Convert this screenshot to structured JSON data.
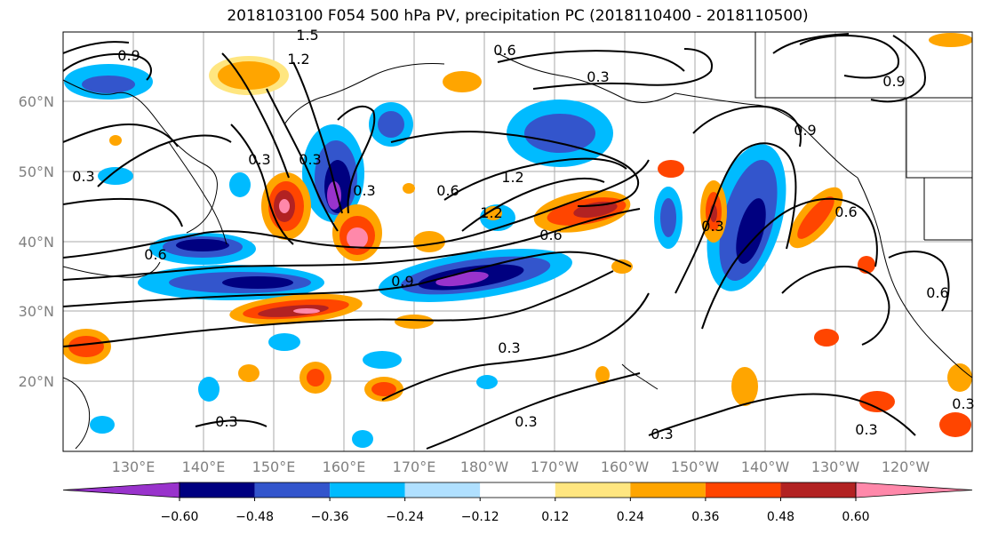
{
  "title": "2018103100 F054 500 hPa PV, precipitation PC (2018110400 - 2018110500)",
  "map": {
    "lon_labels": [
      "130°E",
      "140°E",
      "150°E",
      "160°E",
      "170°E",
      "180°W",
      "170°W",
      "160°W",
      "150°W",
      "140°W",
      "130°W",
      "120°W"
    ],
    "lat_labels": [
      "60°N",
      "50°N",
      "40°N",
      "30°N",
      "20°N"
    ],
    "contour_labels": [
      "1.5",
      "1.2",
      "0.9",
      "0.6",
      "0.3",
      "0.9",
      "0.3",
      "1.2",
      "0.6",
      "0.3",
      "0.6",
      "1.2",
      "0.6",
      "0.3",
      "0.9",
      "0.3",
      "0.6",
      "0.3",
      "0.3",
      "0.3",
      "0.3",
      "0.3",
      "0.9",
      "0.3",
      "0.3",
      "0.6"
    ]
  },
  "colorbar": {
    "tick_labels": [
      "−0.60",
      "−0.48",
      "−0.36",
      "−0.24",
      "−0.12",
      "0.12",
      "0.24",
      "0.36",
      "0.48",
      "0.60"
    ],
    "colors": [
      "#9933cc",
      "#000080",
      "#3355cc",
      "#00bbff",
      "#b0e0ff",
      "#ffffff",
      "#ffe680",
      "#ffa500",
      "#ff4500",
      "#b22222",
      "#ff88aa"
    ]
  }
}
